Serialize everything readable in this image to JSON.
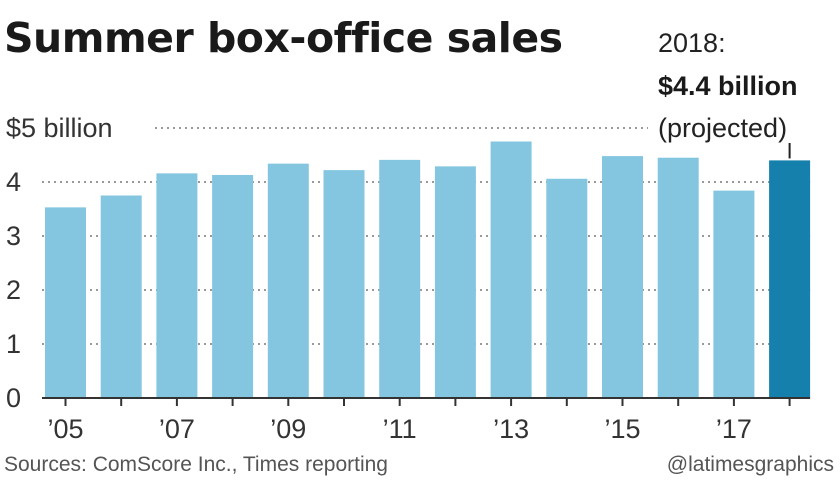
{
  "chart_data": {
    "type": "bar",
    "title": "Summer box-office sales",
    "categories": [
      "2005",
      "2006",
      "2007",
      "2008",
      "2009",
      "2010",
      "2011",
      "2012",
      "2013",
      "2014",
      "2015",
      "2016",
      "2017",
      "2018"
    ],
    "values": [
      3.53,
      3.75,
      4.16,
      4.13,
      4.34,
      4.22,
      4.41,
      4.29,
      4.75,
      4.06,
      4.48,
      4.45,
      3.84,
      4.4
    ],
    "x_tick_labels": [
      {
        "category": "2005",
        "label": "’05"
      },
      {
        "category": "2007",
        "label": "’07"
      },
      {
        "category": "2009",
        "label": "’09"
      },
      {
        "category": "2011",
        "label": "’11"
      },
      {
        "category": "2013",
        "label": "’13"
      },
      {
        "category": "2015",
        "label": "’15"
      },
      {
        "category": "2017",
        "label": "’17"
      }
    ],
    "y_ticks": [
      {
        "value": 0,
        "label": "0"
      },
      {
        "value": 1,
        "label": "1"
      },
      {
        "value": 2,
        "label": "2"
      },
      {
        "value": 3,
        "label": "3"
      },
      {
        "value": 4,
        "label": "4"
      },
      {
        "value": 5,
        "label": "$5 billion"
      }
    ],
    "ylim": [
      0,
      5
    ],
    "grid": true,
    "colors": {
      "bar": "#84c6e0",
      "highlight_bar": "#1580ab",
      "grid": "#9a9a9a",
      "axis": "#333333"
    },
    "highlight": {
      "category": "2018",
      "line1": "2018:",
      "line2": "$4.4 billion",
      "line3": "(projected)"
    }
  },
  "footer": {
    "source": "Sources: ComScore Inc., Times reporting",
    "credit": "@latimesgraphics"
  }
}
